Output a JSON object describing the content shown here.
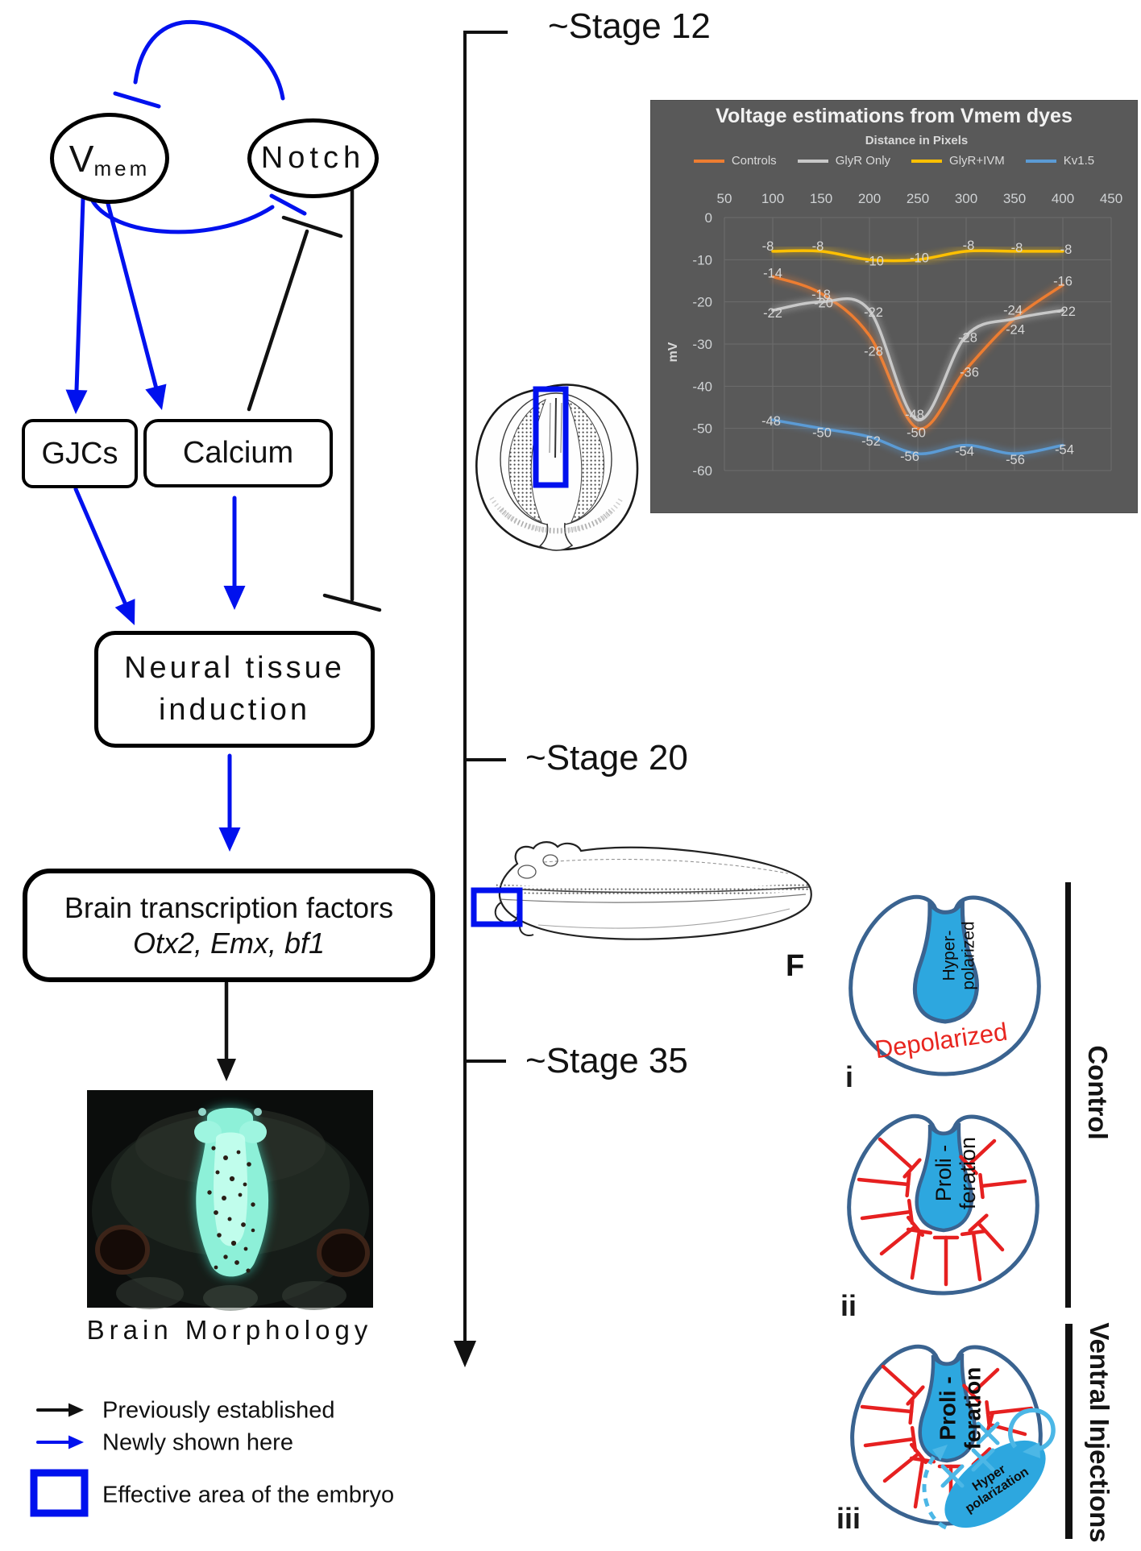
{
  "pathway": {
    "vmem": {
      "main": "V",
      "sub": "mem"
    },
    "notch": "Notch",
    "gjcs": "GJCs",
    "calcium": "Calcium",
    "neural_line1": "Neural tissue",
    "neural_line2": "induction",
    "btf_line1": "Brain transcription factors",
    "btf_line2": "Otx2, Emx, bf1",
    "morphology_caption": "Brain Morphology"
  },
  "timeline": {
    "stage12": "~Stage 12",
    "stage20": "~Stage 20",
    "stage35": "~Stage 35"
  },
  "key": {
    "previously": "Previously established",
    "newly": "Newly shown here",
    "effective": "Effective area of the embryo"
  },
  "panels": {
    "i": {
      "index": "i",
      "line1": "Hyper-",
      "line2": "polarized",
      "outer": "Depolarized"
    },
    "ii": {
      "index": "ii",
      "line1": "Proli -",
      "line2": "feration"
    },
    "iii": {
      "index": "iii",
      "line1": "Proli -",
      "line2": "feration",
      "blob1": "Hyper",
      "blob2": "polarization"
    },
    "control": "Control",
    "ventral": "Ventral Injections",
    "f_label": "F"
  },
  "chart_data": {
    "type": "line",
    "title": "Voltage estimations from Vmem dyes",
    "subtitle": "Distance in Pixels",
    "ylabel": "mV",
    "x_axis_ticks": [
      50,
      100,
      150,
      200,
      250,
      300,
      350,
      400,
      450
    ],
    "y_axis_ticks": [
      0,
      -10,
      -20,
      -30,
      -40,
      -50,
      -60
    ],
    "x": [
      100,
      150,
      200,
      250,
      300,
      350,
      400
    ],
    "series": [
      {
        "name": "Controls",
        "color": "#ED7D31",
        "values": [
          -14,
          -18,
          -28,
          -50,
          -36,
          -24,
          -16
        ]
      },
      {
        "name": "GlyR Only",
        "color": "#C8C8C8",
        "values": [
          -22,
          -20,
          -22,
          -48,
          -28,
          -24,
          -22
        ]
      },
      {
        "name": "GlyR+IVM",
        "color": "#FFC000",
        "values": [
          -8,
          -8,
          -10,
          -10,
          -8,
          -8,
          -8
        ]
      },
      {
        "name": "Kv1.5",
        "color": "#5B9BD5",
        "values": [
          -48,
          -50,
          -52,
          -56,
          -54,
          -56,
          -54
        ]
      }
    ],
    "ylim": [
      -60,
      0
    ],
    "grid": true,
    "legend_position": "top",
    "background": "#595959"
  },
  "colors": {
    "pathway_new": "#0011EE",
    "pathway_established": "#111111",
    "embryo_outline": "#3A6390",
    "polarized_region_fill": "#2DA7DF",
    "inhibition_red": "#E62020",
    "light_blue_annotation": "#4CB7E6",
    "depolarized_text": "#E8251F",
    "chart_background": "#595959"
  }
}
